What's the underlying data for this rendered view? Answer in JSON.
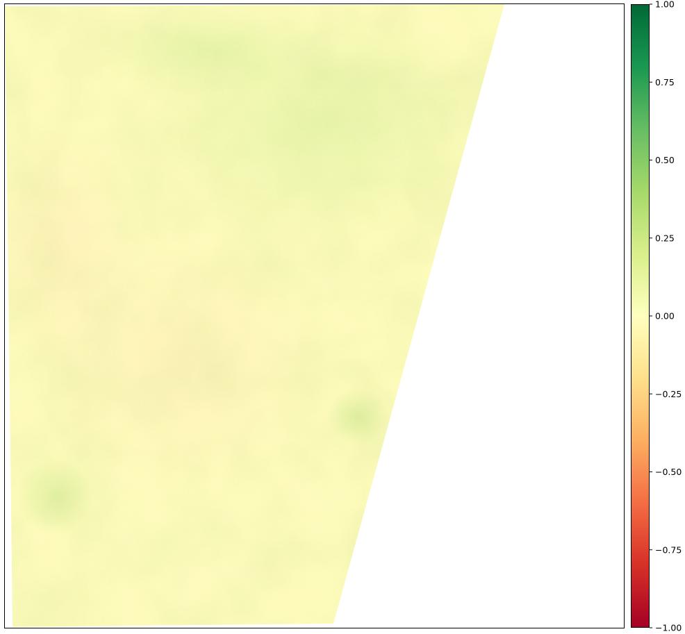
{
  "chart_data": {
    "type": "heatmap",
    "title": "",
    "xlabel": "",
    "ylabel": "",
    "axis_ticks": "none",
    "raster": {
      "description_visible": "single-band raster with no-data area on the right",
      "dominant_value_range": [
        -0.1,
        0.15
      ],
      "has_nodata_region": true
    },
    "colorbar": {
      "colormap": "RdYlGn",
      "vmin": -1.0,
      "vmax": 1.0,
      "ticks": [
        1.0,
        0.75,
        0.5,
        0.25,
        0.0,
        -0.25,
        -0.5,
        -0.75,
        -1.0
      ],
      "tick_labels": [
        "1.00",
        "0.75",
        "0.50",
        "0.25",
        "0.00",
        "−0.25",
        "−0.50",
        "−0.75",
        "−1.00"
      ],
      "color_stops": [
        {
          "value": -1.0,
          "color": "#a50026"
        },
        {
          "value": -0.8,
          "color": "#d73027"
        },
        {
          "value": -0.6,
          "color": "#f46d43"
        },
        {
          "value": -0.4,
          "color": "#fdae61"
        },
        {
          "value": -0.2,
          "color": "#fee08b"
        },
        {
          "value": 0.0,
          "color": "#ffffbf"
        },
        {
          "value": 0.2,
          "color": "#d9ef8b"
        },
        {
          "value": 0.4,
          "color": "#a6d96a"
        },
        {
          "value": 0.6,
          "color": "#66bd63"
        },
        {
          "value": 0.8,
          "color": "#1a9850"
        },
        {
          "value": 1.0,
          "color": "#006837"
        }
      ]
    }
  }
}
